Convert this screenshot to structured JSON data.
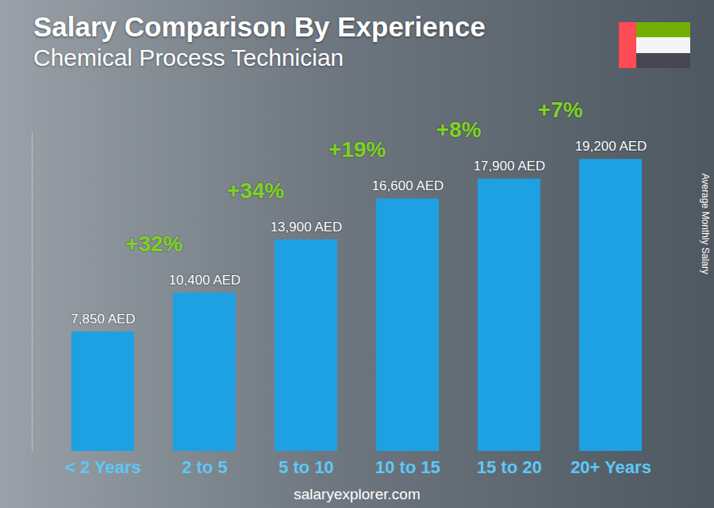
{
  "chart_data": {
    "type": "bar",
    "title": "Salary Comparison By Experience",
    "subtitle": "Chemical Process Technician",
    "y_label": "Average Monthly Salary",
    "source": "salaryexplorer.com",
    "categories": [
      "< 2 Years",
      "2 to 5",
      "5 to 10",
      "10 to 15",
      "15 to 20",
      "20+ Years"
    ],
    "values": [
      7850,
      10400,
      13900,
      16600,
      17900,
      19200
    ],
    "value_labels": [
      "7,850 AED",
      "10,400 AED",
      "13,900 AED",
      "16,600 AED",
      "17,900 AED",
      "19,200 AED"
    ],
    "annotations": [
      "+32%",
      "+34%",
      "+19%",
      "+8%",
      "+7%"
    ],
    "color": "#1da1e3",
    "ylim": [
      0,
      21000
    ],
    "yticks": [],
    "tick_labels": "x",
    "data_labels": true,
    "grid": false
  }
}
